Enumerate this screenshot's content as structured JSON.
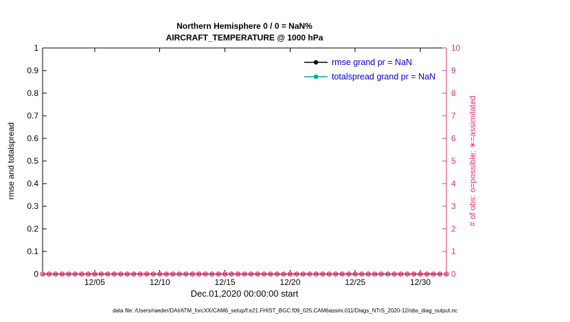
{
  "chart_data": {
    "type": "line",
    "title": "Northern Hemisphere 0 / 0 = NaN%",
    "subtitle": "AIRCRAFT_TEMPERATURE @ 1000 hPa",
    "grid": false,
    "legend_position": "top-right-inside",
    "legend_text_color": "#0000d0",
    "x_axis": {
      "label": "Dec.01,2020 00:00:00 start",
      "lim_days": [
        0,
        31
      ],
      "tick_days": [
        4,
        9,
        14,
        19,
        24,
        29
      ],
      "tick_labels": [
        "12/05",
        "12/10",
        "12/15",
        "12/20",
        "12/25",
        "12/30"
      ]
    },
    "left_axis": {
      "label": "rmse and totalspread",
      "lim": [
        0,
        1
      ],
      "ticks": [
        0,
        0.1,
        0.2,
        0.3,
        0.4,
        0.5,
        0.6,
        0.7,
        0.8,
        0.9,
        1
      ],
      "tick_labels": [
        "0",
        "0.1",
        "0.2",
        "0.3",
        "0.4",
        "0.5",
        "0.6",
        "0.7",
        "0.8",
        "0.9",
        "1"
      ],
      "color": "#000000"
    },
    "right_axis": {
      "label": "# of obs: o=possible; ∗=assimilated",
      "lim": [
        0,
        10
      ],
      "ticks": [
        0,
        1,
        2,
        3,
        4,
        5,
        6,
        7,
        8,
        9,
        10
      ],
      "tick_labels": [
        "0",
        "1",
        "2",
        "3",
        "4",
        "5",
        "6",
        "7",
        "8",
        "9",
        "10"
      ],
      "color": "#e8326f"
    },
    "series": [
      {
        "name": "rmse",
        "legend": "rmse grand pr = NaN",
        "color": "#000000",
        "marker": "filled-circle",
        "axis": "left",
        "values": "NaN — no curve drawn"
      },
      {
        "name": "totalspread",
        "legend": "totalspread grand pr = NaN",
        "color": "#00a0a0",
        "marker": "filled-circle",
        "axis": "left",
        "values": "NaN — no curve drawn"
      },
      {
        "name": "possible-obs",
        "color": "#e8326f",
        "marker": "o",
        "axis": "right",
        "n_points": 63,
        "constant_value": 0
      },
      {
        "name": "assimilated-obs",
        "color": "#e8326f",
        "marker": "*",
        "axis": "right",
        "n_points": 63,
        "constant_value": 0
      }
    ],
    "footnote": "data file: /Users/raeder/DAI/ATM_forcXX/CAM6_setup/f.e21.FHIST_BGC.f09_025.CAM6assim.011/Diags_NTrS_2020-12/obs_diag_output.nc"
  }
}
